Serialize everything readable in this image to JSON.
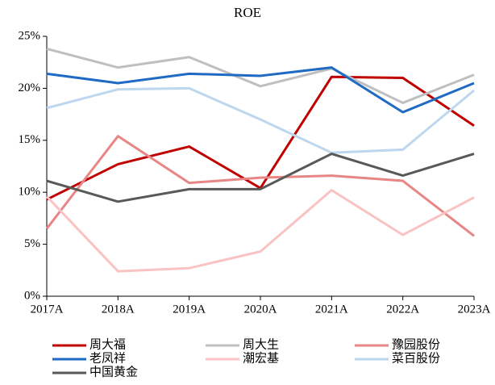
{
  "chart_data": {
    "type": "line",
    "title": "ROE",
    "categories": [
      "2017A",
      "2018A",
      "2019A",
      "2020A",
      "2021A",
      "2022A",
      "2023A"
    ],
    "series": [
      {
        "name": "周大福",
        "color": "#c00000",
        "values": [
          9.3,
          12.7,
          14.4,
          10.4,
          21.1,
          21.0,
          16.4
        ]
      },
      {
        "name": "周大生",
        "color": "#bfbfbf",
        "values": [
          23.8,
          22.0,
          23.0,
          20.2,
          21.9,
          18.6,
          21.3
        ]
      },
      {
        "name": "豫园股份",
        "color": "#e88585",
        "values": [
          6.5,
          15.4,
          10.9,
          11.4,
          11.6,
          11.1,
          5.8
        ]
      },
      {
        "name": "老凤祥",
        "color": "#1f6bc4",
        "values": [
          21.4,
          20.5,
          21.4,
          21.2,
          22.0,
          17.7,
          20.5
        ]
      },
      {
        "name": "潮宏基",
        "color": "#f9c3c3",
        "values": [
          9.6,
          2.4,
          2.7,
          4.3,
          10.2,
          5.9,
          9.5
        ]
      },
      {
        "name": "菜百股份",
        "color": "#bdd7ee",
        "values": [
          18.1,
          19.9,
          20.0,
          17.0,
          13.8,
          14.1,
          19.8
        ]
      },
      {
        "name": "中国黄金",
        "color": "#595959",
        "values": [
          11.1,
          9.1,
          10.3,
          10.3,
          13.7,
          11.6,
          13.7
        ]
      }
    ],
    "ylim": [
      0,
      25
    ],
    "yticks": [
      {
        "value": 0,
        "label": "0%"
      },
      {
        "value": 5,
        "label": "5%"
      },
      {
        "value": 10,
        "label": "10%"
      },
      {
        "value": 15,
        "label": "15%"
      },
      {
        "value": 20,
        "label": "20%"
      },
      {
        "value": 25,
        "label": "25%"
      }
    ],
    "grid": false
  }
}
